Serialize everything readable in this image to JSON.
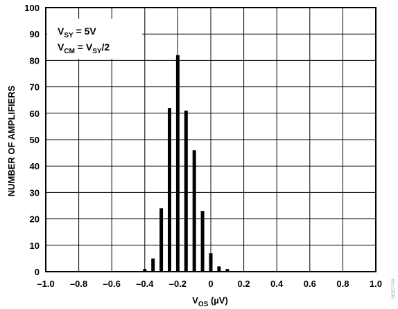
{
  "chart_data": {
    "type": "bar",
    "xlabel": {
      "main": "V",
      "sub": "OS",
      "unit": " (µV)"
    },
    "ylabel": "NUMBER OF AMPLIFIERS",
    "xlim": [
      -1.0,
      1.0
    ],
    "ylim": [
      0,
      100
    ],
    "x_ticks": [
      "–1.0",
      "–0.8",
      "–0.6",
      "–0.4",
      "–0.2",
      "0",
      "0.2",
      "0.4",
      "0.6",
      "0.8",
      "1.0"
    ],
    "y_ticks": [
      "0",
      "10",
      "20",
      "30",
      "40",
      "50",
      "60",
      "70",
      "80",
      "90",
      "100"
    ],
    "grid": true,
    "x": [
      -0.4,
      -0.35,
      -0.3,
      -0.25,
      -0.2,
      -0.15,
      -0.1,
      -0.05,
      0.0,
      0.05,
      0.1
    ],
    "values": [
      1,
      5,
      24,
      62,
      82,
      61,
      46,
      23,
      7,
      2,
      1
    ],
    "annotation": {
      "line1": {
        "main": "V",
        "sub": "SY",
        "rest": " = 5V"
      },
      "line2": {
        "main": "V",
        "sub": "CM",
        "mid": " = V",
        "sub2": "SY",
        "rest": "/2"
      }
    }
  },
  "side_label": "06157-009"
}
